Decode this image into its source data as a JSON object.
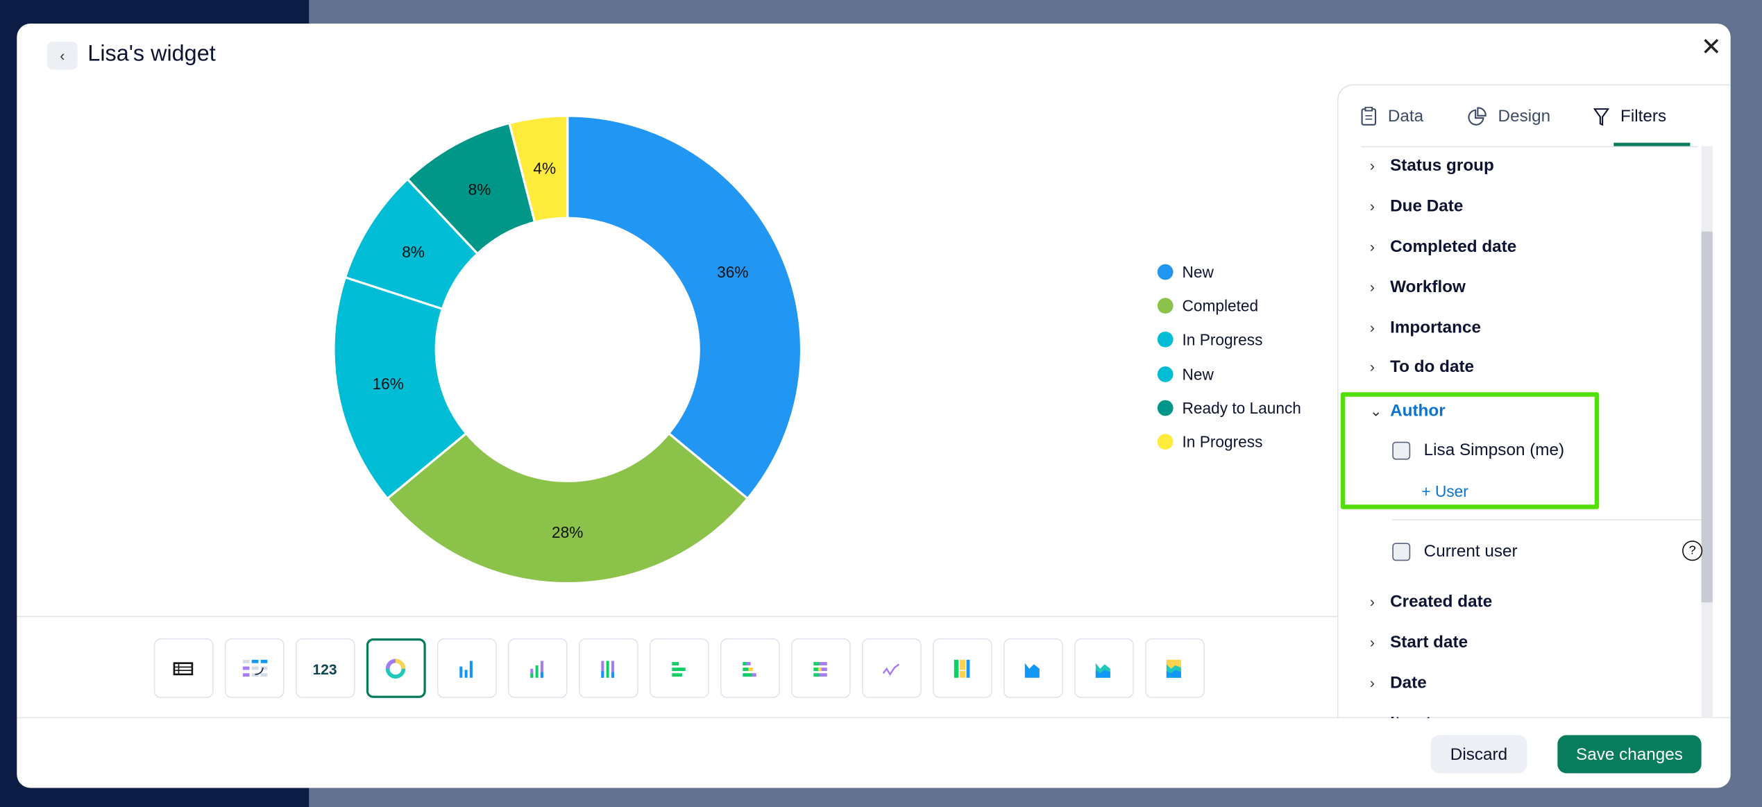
{
  "modal": {
    "title": "Lisa's widget",
    "back_icon": "chevron-left-icon",
    "close_icon": "close-icon"
  },
  "chart_data": {
    "type": "pie",
    "donut": true,
    "labels": [
      "New",
      "Completed",
      "In Progress",
      "New",
      "Ready to Launch",
      "In Progress"
    ],
    "values": [
      36,
      28,
      16,
      8,
      8,
      4
    ],
    "value_labels": [
      "36%",
      "28%",
      "16%",
      "8%",
      "8%",
      "4%"
    ],
    "colors": [
      "#2196F3",
      "#8BC34A",
      "#00BCD4",
      "#00BCD4",
      "#009688",
      "#FFEB3B"
    ],
    "legend_position": "right"
  },
  "chart_types": [
    "table",
    "pivot",
    "number",
    "donut",
    "bar",
    "stacked-bar",
    "stacked-100-bar",
    "horizontal-bar",
    "horizontal-stacked-bar",
    "horizontal-100-bar",
    "line",
    "treemap",
    "area",
    "stacked-area",
    "stacked-100-area"
  ],
  "chart_types_selected": "donut",
  "panel": {
    "tabs": [
      {
        "label": "Data",
        "icon": "clipboard-icon"
      },
      {
        "label": "Design",
        "icon": "pie-chart-icon"
      },
      {
        "label": "Filters",
        "icon": "filter-icon"
      }
    ],
    "active_tab": "Filters",
    "filters_top": [
      "Status group",
      "Due Date",
      "Completed date",
      "Workflow",
      "Importance",
      "To do date"
    ],
    "author": {
      "label": "Author",
      "users": [
        "Lisa Simpson (me)"
      ],
      "add_user": "+ User",
      "current_user": "Current user"
    },
    "filters_bottom": [
      "Created date",
      "Start date",
      "Date",
      "Iterat"
    ]
  },
  "footer": {
    "discard": "Discard",
    "save": "Save changes"
  }
}
